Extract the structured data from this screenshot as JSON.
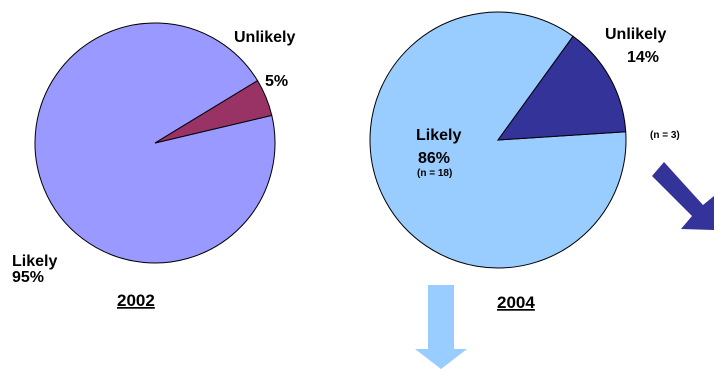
{
  "colors": {
    "likely_2002": "#9999ff",
    "unlikely_2002": "#993366",
    "likely_2004": "#99ccff",
    "unlikely_2004": "#333399",
    "arrow_light": "#99ccff",
    "arrow_dark": "#333399",
    "stroke": "#000000"
  },
  "chart_data": [
    {
      "type": "pie",
      "title": "2002",
      "categories": [
        "Likely",
        "Unlikely"
      ],
      "values": [
        95,
        5
      ],
      "labels": [
        {
          "name": "Likely",
          "percent": "95%",
          "n": ""
        },
        {
          "name": "Unlikely",
          "percent": "5%",
          "n": ""
        }
      ]
    },
    {
      "type": "pie",
      "title": "2004",
      "categories": [
        "Likely",
        "Unlikely"
      ],
      "values": [
        86,
        14
      ],
      "labels": [
        {
          "name": "Likely",
          "percent": "86%",
          "n": "(n = 18)"
        },
        {
          "name": "Unlikely",
          "percent": "14%",
          "n": "(n = 3)"
        }
      ]
    }
  ]
}
